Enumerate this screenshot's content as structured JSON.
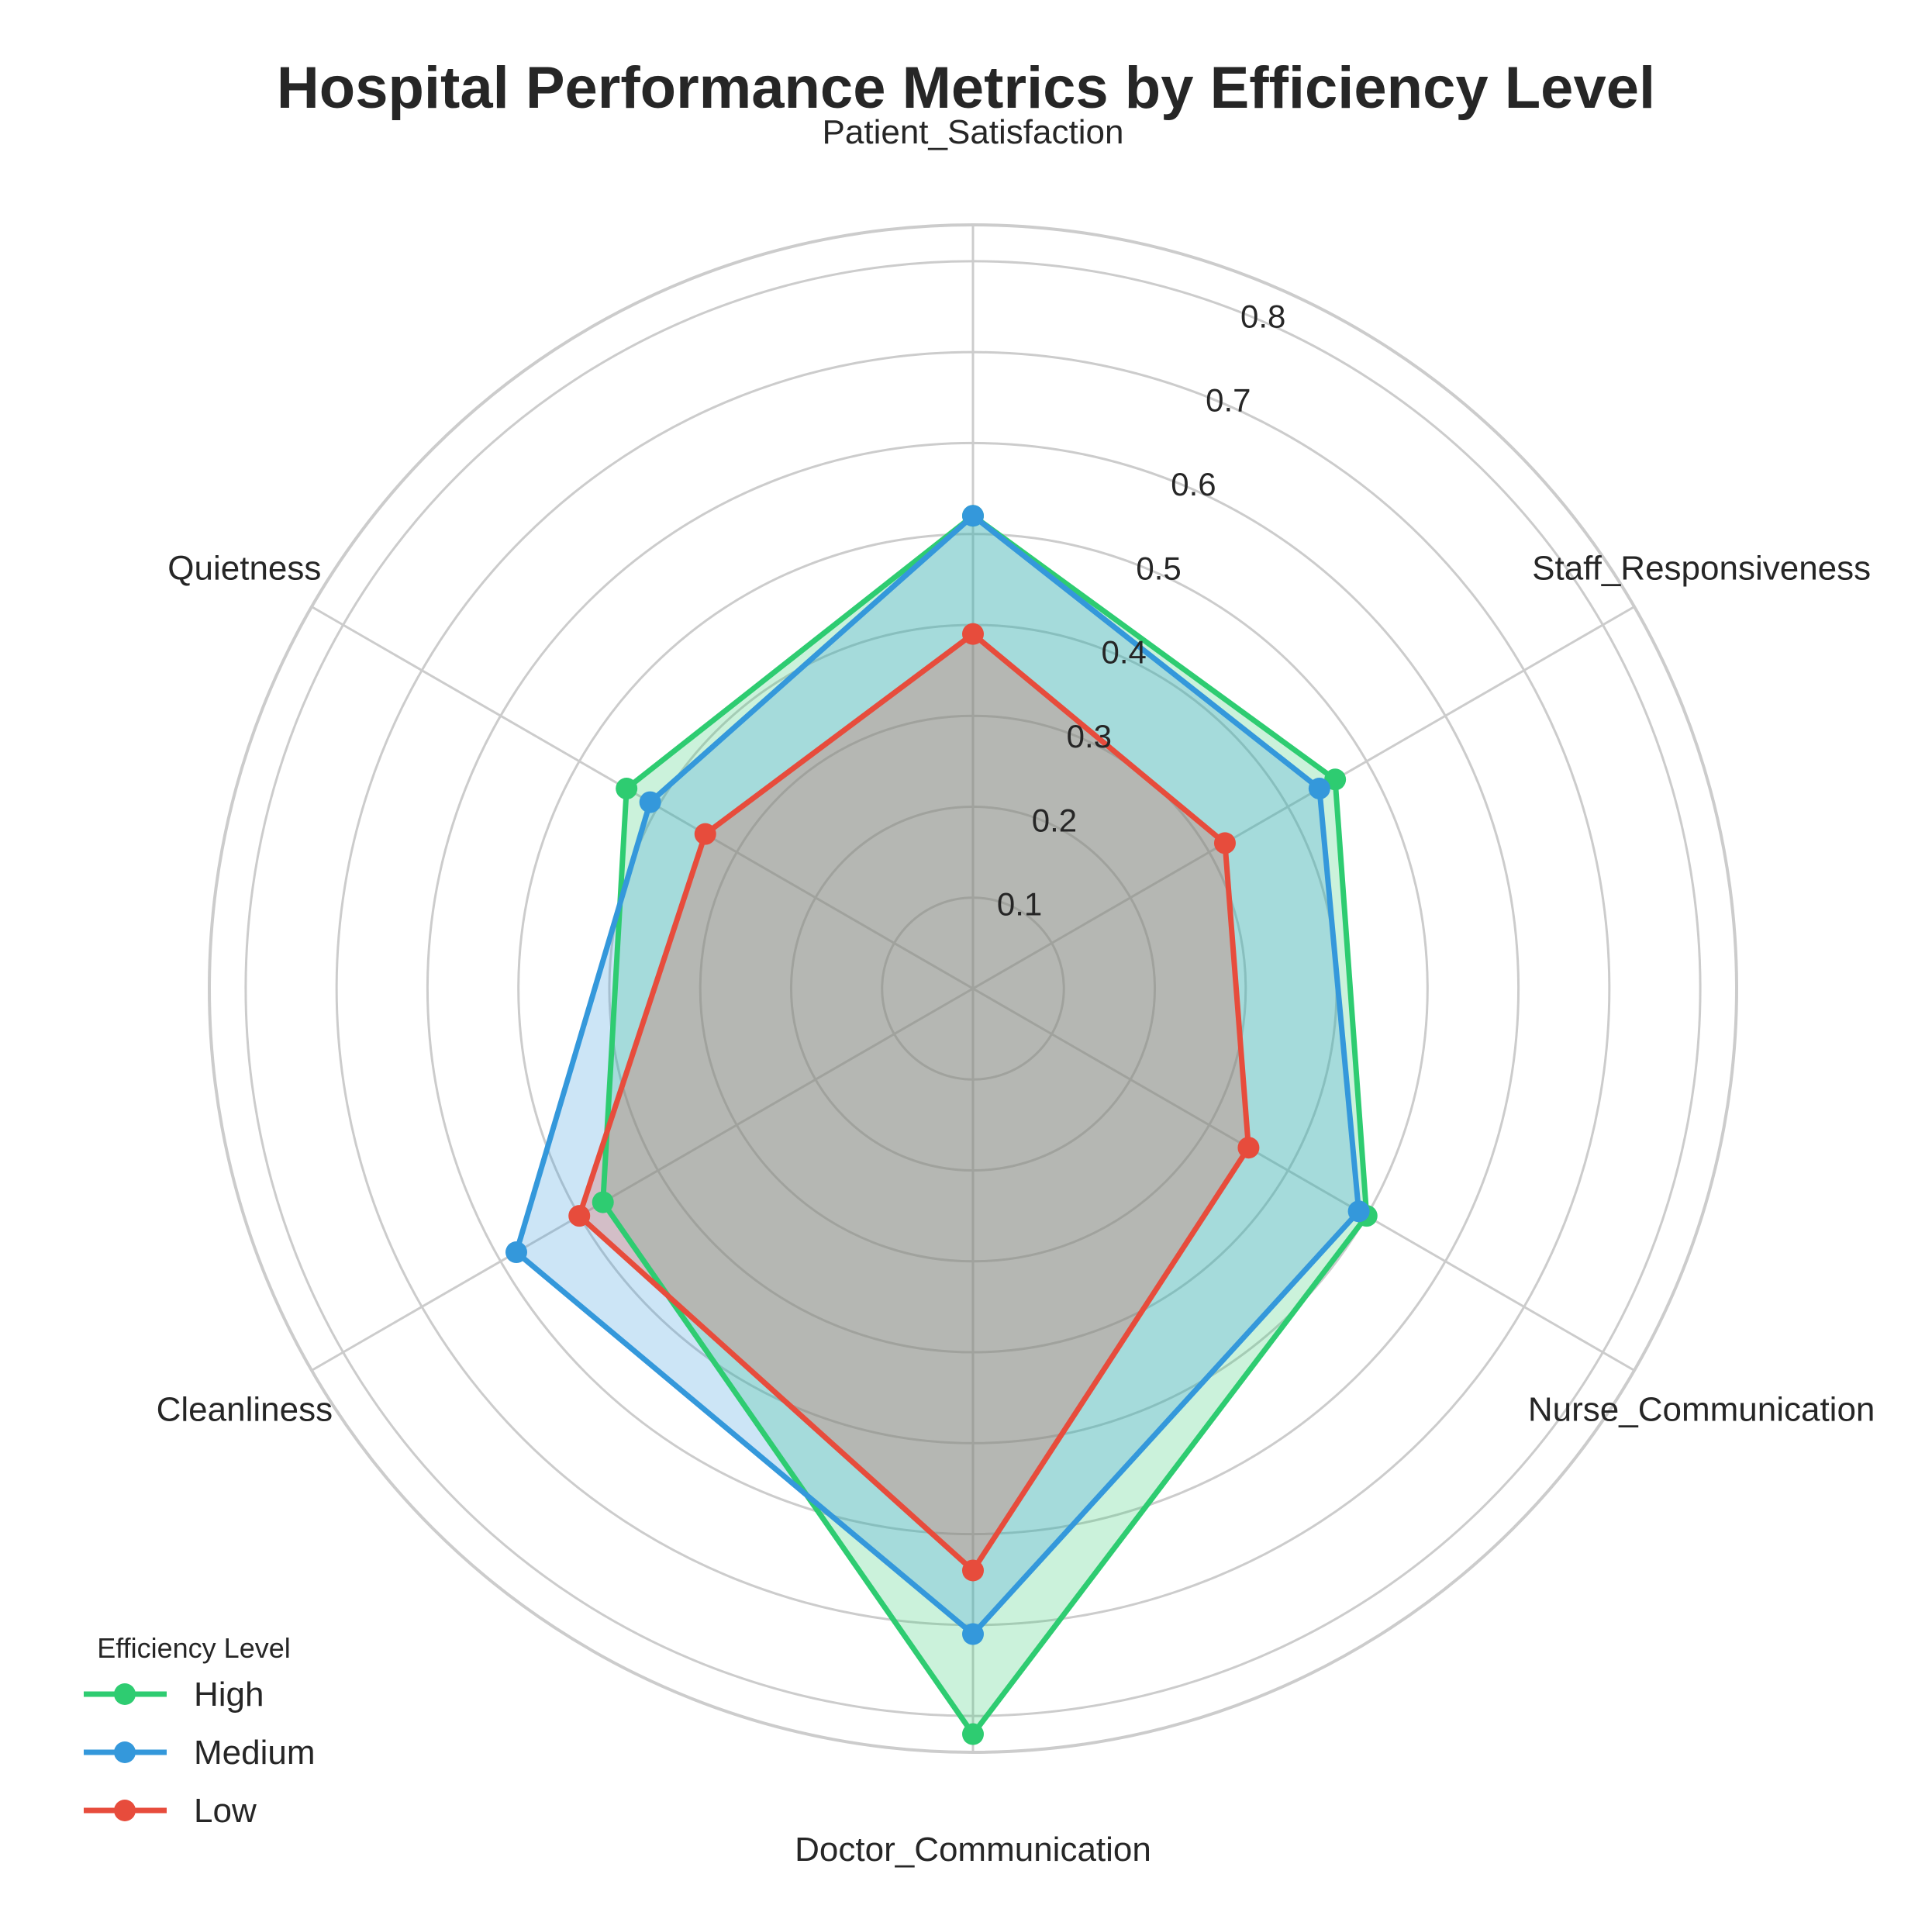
{
  "chart_data": {
    "type": "radar",
    "title": "Hospital Performance Metrics by Efficiency Level",
    "axes": [
      "Patient_Satisfaction",
      "Staff_Responsiveness",
      "Nurse_Communication",
      "Doctor_Communication",
      "Cleanliness",
      "Quietness"
    ],
    "r_ticks": [
      0.1,
      0.2,
      0.3,
      0.4,
      0.5,
      0.6,
      0.7,
      0.8
    ],
    "r_tick_labels": [
      "0.1",
      "0.2",
      "0.3",
      "0.4",
      "0.5",
      "0.6",
      "0.7",
      "0.8"
    ],
    "rlim": [
      0,
      0.84
    ],
    "grid": true,
    "legend": {
      "title": "Efficiency Level",
      "position": "bottom-left"
    },
    "series": [
      {
        "name": "High",
        "color": "#2ecc71",
        "values": [
          0.52,
          0.46,
          0.5,
          0.82,
          0.47,
          0.44
        ]
      },
      {
        "name": "Medium",
        "color": "#3498db",
        "values": [
          0.52,
          0.44,
          0.49,
          0.71,
          0.58,
          0.41
        ]
      },
      {
        "name": "Low",
        "color": "#e74c3c",
        "values": [
          0.39,
          0.32,
          0.35,
          0.64,
          0.5,
          0.34
        ]
      }
    ]
  }
}
